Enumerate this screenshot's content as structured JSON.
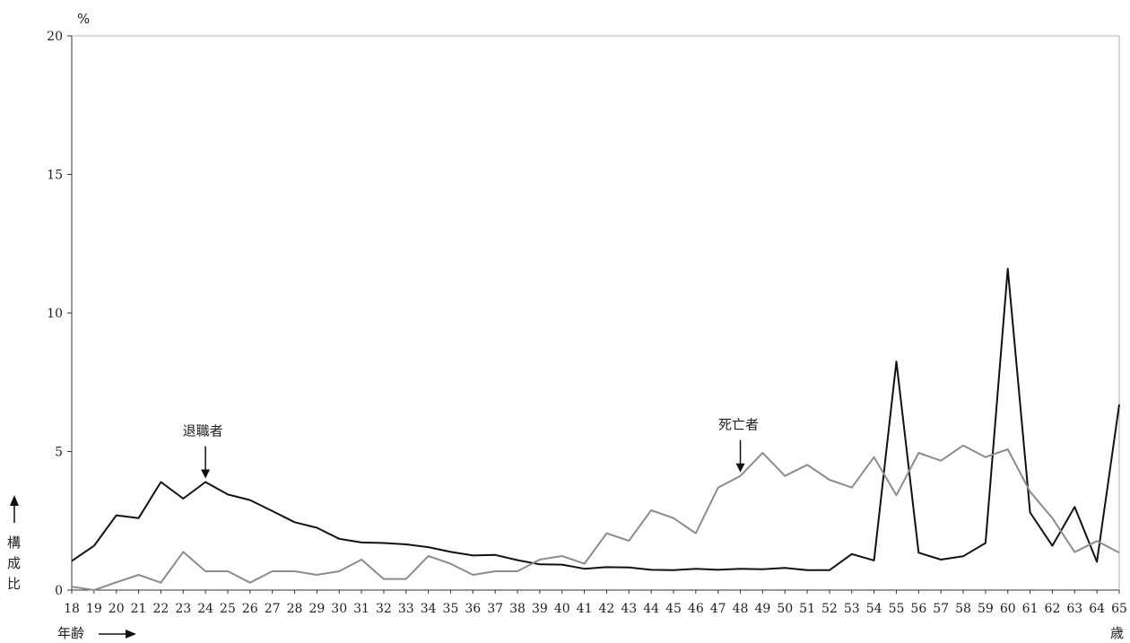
{
  "chart_data": {
    "type": "line",
    "y_unit": "%",
    "ylabel": [
      "構",
      "成",
      "比"
    ],
    "xlabel": "年齢",
    "x_unit": "歳",
    "ylim": [
      0,
      20
    ],
    "yticks": [
      0,
      5,
      10,
      15,
      20
    ],
    "grid": false,
    "x": [
      18,
      19,
      20,
      21,
      22,
      23,
      24,
      25,
      26,
      27,
      28,
      29,
      30,
      31,
      32,
      33,
      34,
      35,
      36,
      37,
      38,
      39,
      40,
      41,
      42,
      43,
      44,
      45,
      46,
      47,
      48,
      49,
      50,
      51,
      52,
      53,
      54,
      55,
      56,
      57,
      58,
      59,
      60,
      61,
      62,
      63,
      64,
      65
    ],
    "series": [
      {
        "name": "退職者",
        "color": "#111111",
        "values": [
          1.05,
          1.6,
          2.7,
          2.6,
          3.9,
          3.3,
          3.9,
          3.45,
          3.25,
          2.85,
          2.45,
          2.25,
          1.85,
          1.72,
          1.7,
          1.65,
          1.55,
          1.38,
          1.25,
          1.27,
          1.08,
          0.93,
          0.92,
          0.77,
          0.83,
          0.82,
          0.73,
          0.72,
          0.77,
          0.73,
          0.77,
          0.75,
          0.8,
          0.72,
          0.72,
          1.3,
          1.07,
          8.25,
          1.35,
          1.1,
          1.22,
          1.7,
          11.6,
          2.8,
          1.6,
          3.0,
          1.02,
          6.7
        ]
      },
      {
        "name": "死亡者",
        "color": "#8c8c8c",
        "values": [
          0.12,
          0.0,
          0.28,
          0.55,
          0.27,
          1.38,
          0.68,
          0.68,
          0.27,
          0.68,
          0.68,
          0.55,
          0.68,
          1.1,
          0.4,
          0.4,
          1.23,
          0.95,
          0.55,
          0.68,
          0.68,
          1.1,
          1.23,
          0.95,
          2.05,
          1.78,
          2.88,
          2.6,
          2.05,
          3.7,
          4.12,
          4.95,
          4.12,
          4.52,
          3.98,
          3.7,
          4.8,
          3.42,
          4.95,
          4.67,
          5.22,
          4.8,
          5.08,
          3.55,
          2.6,
          1.37,
          1.77,
          1.35
        ]
      }
    ],
    "annotations": [
      {
        "text": "退職者",
        "series": 0,
        "x": 24
      },
      {
        "text": "死亡者",
        "series": 1,
        "x": 48
      }
    ]
  }
}
